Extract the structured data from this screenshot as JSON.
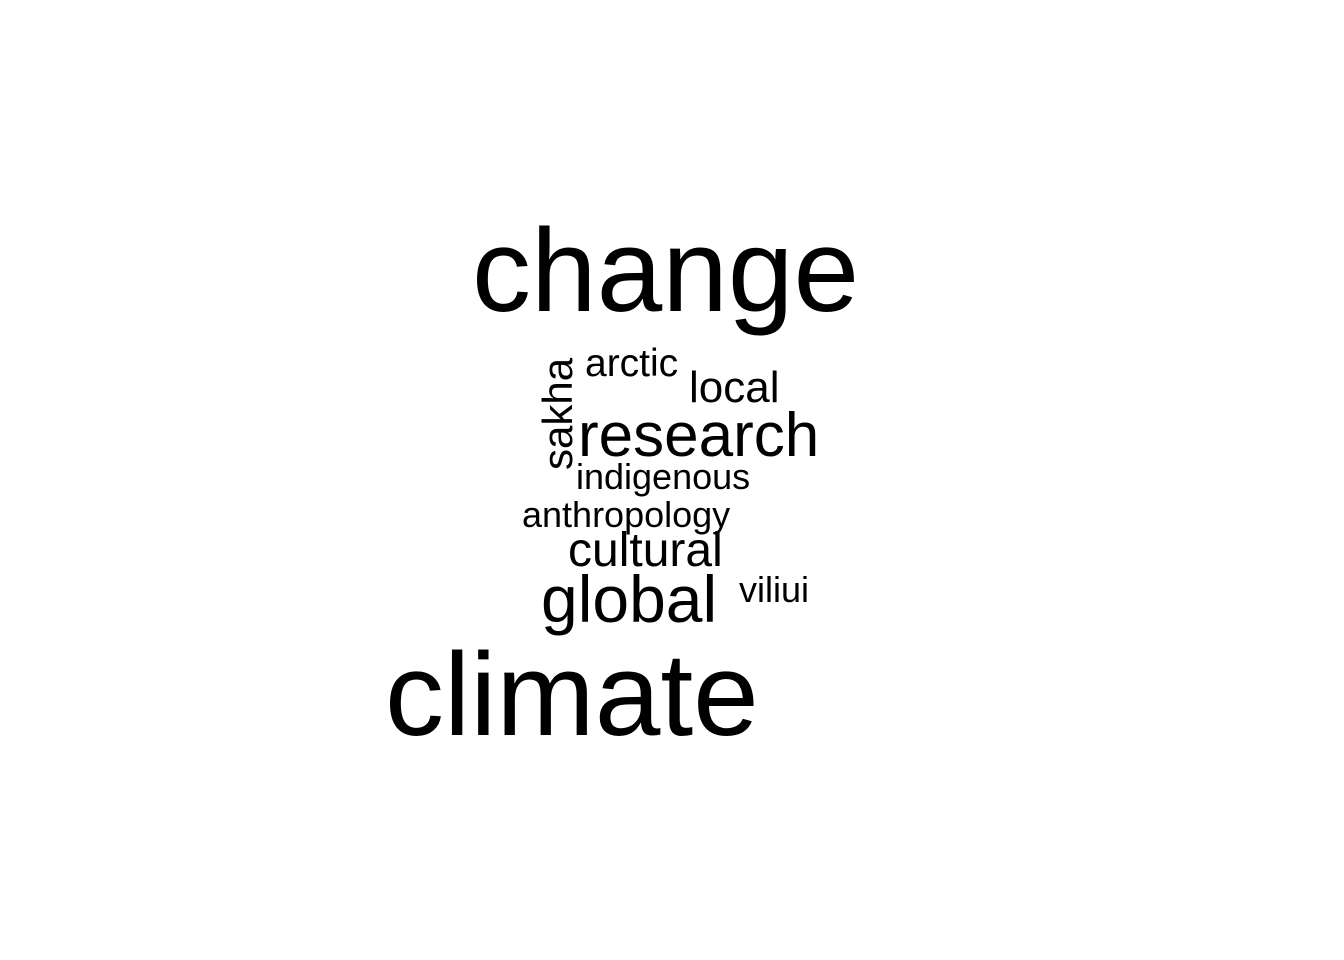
{
  "word_cloud": {
    "text_color": "#000000",
    "background_color": "#ffffff",
    "words": [
      {
        "text": "change"
      },
      {
        "text": "climate"
      },
      {
        "text": "research"
      },
      {
        "text": "global"
      },
      {
        "text": "cultural"
      },
      {
        "text": "local"
      },
      {
        "text": "arctic"
      },
      {
        "text": "sakha",
        "orientation": "vertical"
      },
      {
        "text": "indigenous"
      },
      {
        "text": "anthropology"
      },
      {
        "text": "viliui"
      }
    ]
  }
}
